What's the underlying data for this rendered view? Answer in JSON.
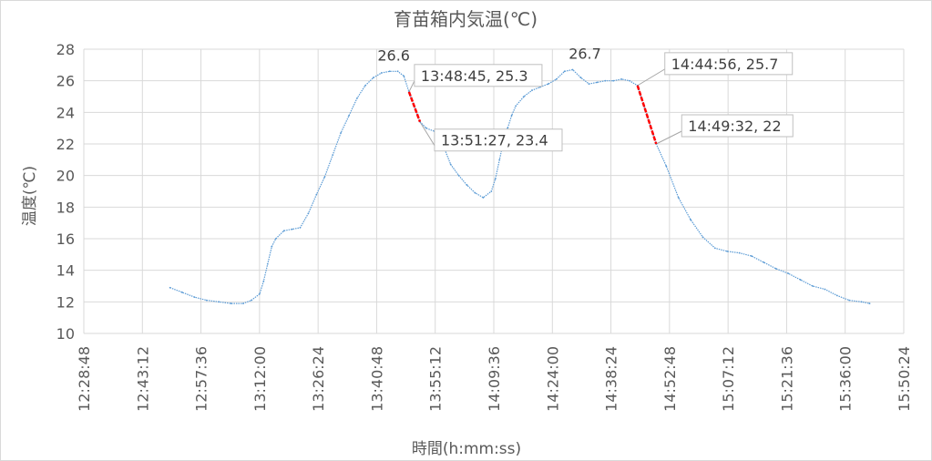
{
  "chart_data": {
    "type": "line",
    "title": "育苗箱内気温(℃)",
    "xlabel": "時間(h:mm:ss)",
    "ylabel": "温度(℃)",
    "ylim": [
      10,
      28
    ],
    "yticks": [
      "10",
      "12",
      "14",
      "16",
      "18",
      "20",
      "22",
      "24",
      "26",
      "28"
    ],
    "xticks": [
      "12:28:48",
      "12:43:12",
      "12:57:36",
      "13:12:00",
      "13:26:24",
      "13:40:48",
      "13:55:12",
      "14:09:36",
      "14:24:00",
      "14:38:24",
      "14:52:48",
      "15:07:12",
      "15:21:36",
      "15:36:00",
      "15:50:24"
    ],
    "grid": true,
    "series": [
      {
        "color": "#5B9BD5",
        "x": [
          "12:50:00",
          "12:53:00",
          "12:56:00",
          "12:59:00",
          "13:02:00",
          "13:05:00",
          "13:08:00",
          "13:10:00",
          "13:12:00",
          "13:13:00",
          "13:14:00",
          "13:15:00",
          "13:16:00",
          "13:18:00",
          "13:20:00",
          "13:22:00",
          "13:24:00",
          "13:26:00",
          "13:28:00",
          "13:30:00",
          "13:32:00",
          "13:34:00",
          "13:36:00",
          "13:38:00",
          "13:40:00",
          "13:42:00",
          "13:44:00",
          "13:46:00",
          "13:47:30",
          "13:48:45",
          "13:51:27",
          "13:53:00",
          "13:55:00",
          "13:57:00",
          "13:59:00",
          "14:01:00",
          "14:03:00",
          "14:05:00",
          "14:07:00",
          "14:09:00",
          "14:10:00",
          "14:11:00",
          "14:12:00",
          "14:13:00",
          "14:14:00",
          "14:15:00",
          "14:17:00",
          "14:19:00",
          "14:21:00",
          "14:23:00",
          "14:25:00",
          "14:27:00",
          "14:29:00",
          "14:31:00",
          "14:33:00",
          "14:35:00",
          "14:37:00",
          "14:39:00",
          "14:41:00",
          "14:43:00",
          "14:44:56",
          "14:49:32",
          "14:52:00",
          "14:55:00",
          "14:58:00",
          "15:01:00",
          "15:04:00",
          "15:07:00",
          "15:10:00",
          "15:13:00",
          "15:16:00",
          "15:19:00",
          "15:22:00",
          "15:25:00",
          "15:28:00",
          "15:31:00",
          "15:34:00",
          "15:37:00",
          "15:40:00",
          "15:42:00"
        ],
        "y": [
          12.9,
          12.6,
          12.3,
          12.1,
          12.0,
          11.9,
          11.9,
          12.1,
          12.5,
          13.3,
          14.4,
          15.5,
          16.0,
          16.5,
          16.6,
          16.7,
          17.6,
          18.8,
          19.9,
          21.3,
          22.7,
          23.8,
          24.9,
          25.7,
          26.2,
          26.5,
          26.6,
          26.6,
          26.3,
          25.3,
          23.4,
          23.0,
          22.8,
          22.0,
          20.7,
          20.0,
          19.4,
          18.9,
          18.6,
          19.0,
          19.8,
          21.0,
          22.2,
          23.0,
          23.8,
          24.4,
          25.0,
          25.4,
          25.6,
          25.8,
          26.1,
          26.6,
          26.7,
          26.2,
          25.8,
          25.9,
          26.0,
          26.0,
          26.1,
          26.0,
          25.7,
          22.0,
          20.6,
          18.6,
          17.2,
          16.1,
          15.4,
          15.2,
          15.1,
          14.9,
          14.5,
          14.1,
          13.8,
          13.4,
          13.0,
          12.8,
          12.4,
          12.1,
          12.0,
          11.9
        ]
      },
      {
        "color": "#FF0000",
        "segments": [
          {
            "x": [
              "13:48:45",
              "13:51:27"
            ],
            "y": [
              25.3,
              23.4
            ]
          },
          {
            "x": [
              "14:44:56",
              "14:49:32"
            ],
            "y": [
              25.7,
              22.0
            ]
          }
        ]
      }
    ],
    "peak_labels": [
      {
        "x": "13:45:00",
        "y": 26.6,
        "text": "26.6"
      },
      {
        "x": "14:32:00",
        "y": 26.7,
        "text": "26.7"
      }
    ],
    "annotations": [
      {
        "x": "13:48:45",
        "y": 25.3,
        "text": "13:48:45, 25.3"
      },
      {
        "x": "13:51:27",
        "y": 23.4,
        "text": "13:51:27, 23.4"
      },
      {
        "x": "14:44:56",
        "y": 25.7,
        "text": "14:44:56, 25.7"
      },
      {
        "x": "14:49:32",
        "y": 22.0,
        "text": "14:49:32, 22"
      }
    ]
  }
}
